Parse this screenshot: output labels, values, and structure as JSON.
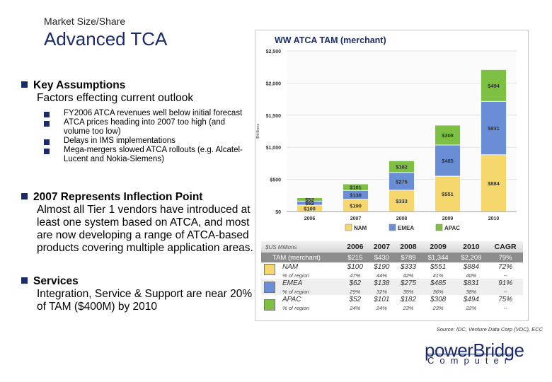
{
  "header": {
    "kicker": "Market Size/Share",
    "title": "Advanced TCA"
  },
  "bullets": [
    {
      "head": "Key Assumptions",
      "body": "Factors effecting current outlook",
      "subs": [
        "FY2006 ATCA revenues well below initial forecast",
        "ATCA prices heading into 2007 too high (and volume too low)",
        "Delays in IMS implementations",
        "Mega-mergers slowed ATCA rollouts  (e.g. Alcatel-Lucent and Nokia-Siemens)"
      ]
    },
    {
      "head": "2007 Represents Inflection Point",
      "body": "Almost all Tier 1 vendors have introduced at least one system based on ATCA, and most are now developing a range of ATCA-based products covering multiple application areas."
    },
    {
      "head": "Services",
      "body": "Integration, Service & Support are near 20% of TAM ($400M) by 2010"
    }
  ],
  "chart_data": {
    "type": "bar",
    "stacked": true,
    "title": "WW ATCA TAM (merchant)",
    "ylabel": "$Millions",
    "ylim": [
      0,
      2500
    ],
    "yticks": [
      "$0",
      "$500",
      "$1,000",
      "$1,500",
      "$2,000",
      "$2,500"
    ],
    "categories": [
      "2006",
      "2007",
      "2008",
      "2009",
      "2010"
    ],
    "series": [
      {
        "name": "NAM",
        "color": "#f5d76e",
        "values": [
          100,
          190,
          333,
          551,
          884
        ],
        "labels": [
          "$100",
          "$190",
          "$333",
          "$551",
          "$884"
        ]
      },
      {
        "name": "EMEA",
        "color": "#6a8ed6",
        "values": [
          62,
          138,
          275,
          485,
          831
        ],
        "labels": [
          "$62",
          "$138",
          "$275",
          "$485",
          "$831"
        ]
      },
      {
        "name": "APAC",
        "color": "#7ec044",
        "values": [
          52,
          101,
          182,
          308,
          494
        ],
        "labels": [
          "$52",
          "$101",
          "$182",
          "$308",
          "$494"
        ]
      }
    ],
    "legend": "bottom"
  },
  "table": {
    "unit_label": "$US Millions",
    "columns": [
      "2006",
      "2007",
      "2008",
      "2009",
      "2010",
      "CAGR"
    ],
    "tam": {
      "label": "TAM (merchant)",
      "values": [
        "$215",
        "$430",
        "$789",
        "$1,344",
        "$2,209",
        "79%"
      ]
    },
    "regions": [
      {
        "name": "NAM",
        "color": "#f5d76e",
        "values": [
          "$100",
          "$190",
          "$333",
          "$551",
          "$884",
          "72%"
        ],
        "pct": [
          "47%",
          "44%",
          "42%",
          "41%",
          "40%",
          "--"
        ]
      },
      {
        "name": "EMEA",
        "color": "#6a8ed6",
        "values": [
          "$62",
          "$138",
          "$275",
          "$485",
          "$831",
          "91%"
        ],
        "pct": [
          "29%",
          "32%",
          "35%",
          "36%",
          "38%",
          "--"
        ]
      },
      {
        "name": "APAC",
        "color": "#7ec044",
        "values": [
          "$52",
          "$101",
          "$182",
          "$308",
          "$494",
          "75%"
        ],
        "pct": [
          "24%",
          "24%",
          "23%",
          "23%",
          "22%",
          "--"
        ]
      }
    ],
    "pct_label": "% of region"
  },
  "source": "Source:  IDC, Venture Data Corp (VDC), ECC",
  "logo": {
    "line1": "powerBridge",
    "line2": "Computer"
  }
}
